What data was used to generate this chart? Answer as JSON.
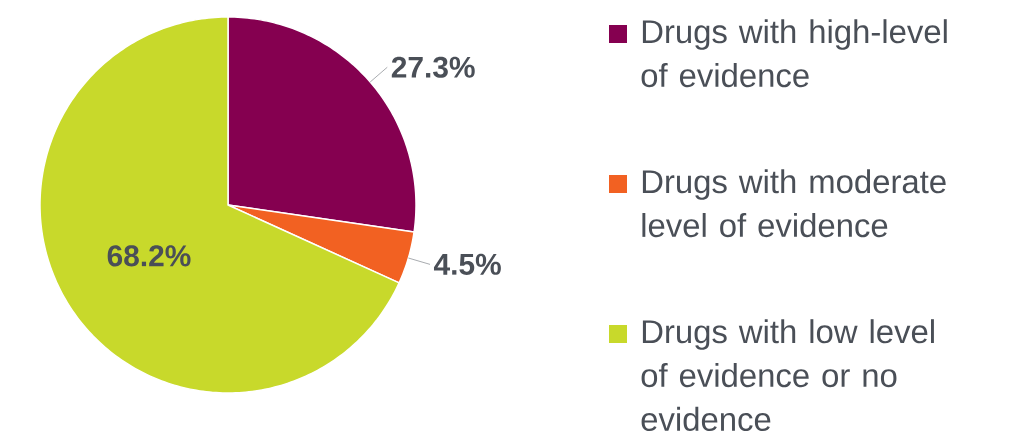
{
  "chart_data": {
    "type": "pie",
    "categories": [
      "Drugs with high-level of evidence",
      "Drugs with moderate level of evidence",
      "Drugs with low level of evidence or no evidence"
    ],
    "values": [
      27.3,
      4.5,
      68.2
    ],
    "colors": [
      "#850050",
      "#f26122",
      "#c8d92b"
    ],
    "value_labels": [
      "27.3%",
      "4.5%",
      "68.2%"
    ],
    "legend": "right"
  }
}
